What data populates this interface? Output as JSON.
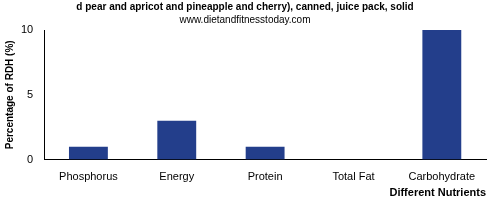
{
  "chart_data": {
    "type": "bar",
    "title": "d pear and apricot and pineapple and cherry), canned, juice pack, solid",
    "subtitle": "www.dietandfitnesstoday.com",
    "x_label": "Different Nutrients",
    "y_label": "Percentage of RDH (%)",
    "categories": [
      "Phosphorus",
      "Energy",
      "Protein",
      "Total Fat",
      "Carbohydrate"
    ],
    "values": [
      1,
      3,
      1,
      0,
      10
    ],
    "color": "#233e8b",
    "ylim": [
      0,
      10
    ],
    "yticks": [
      0,
      5,
      10
    ],
    "grid": false
  }
}
